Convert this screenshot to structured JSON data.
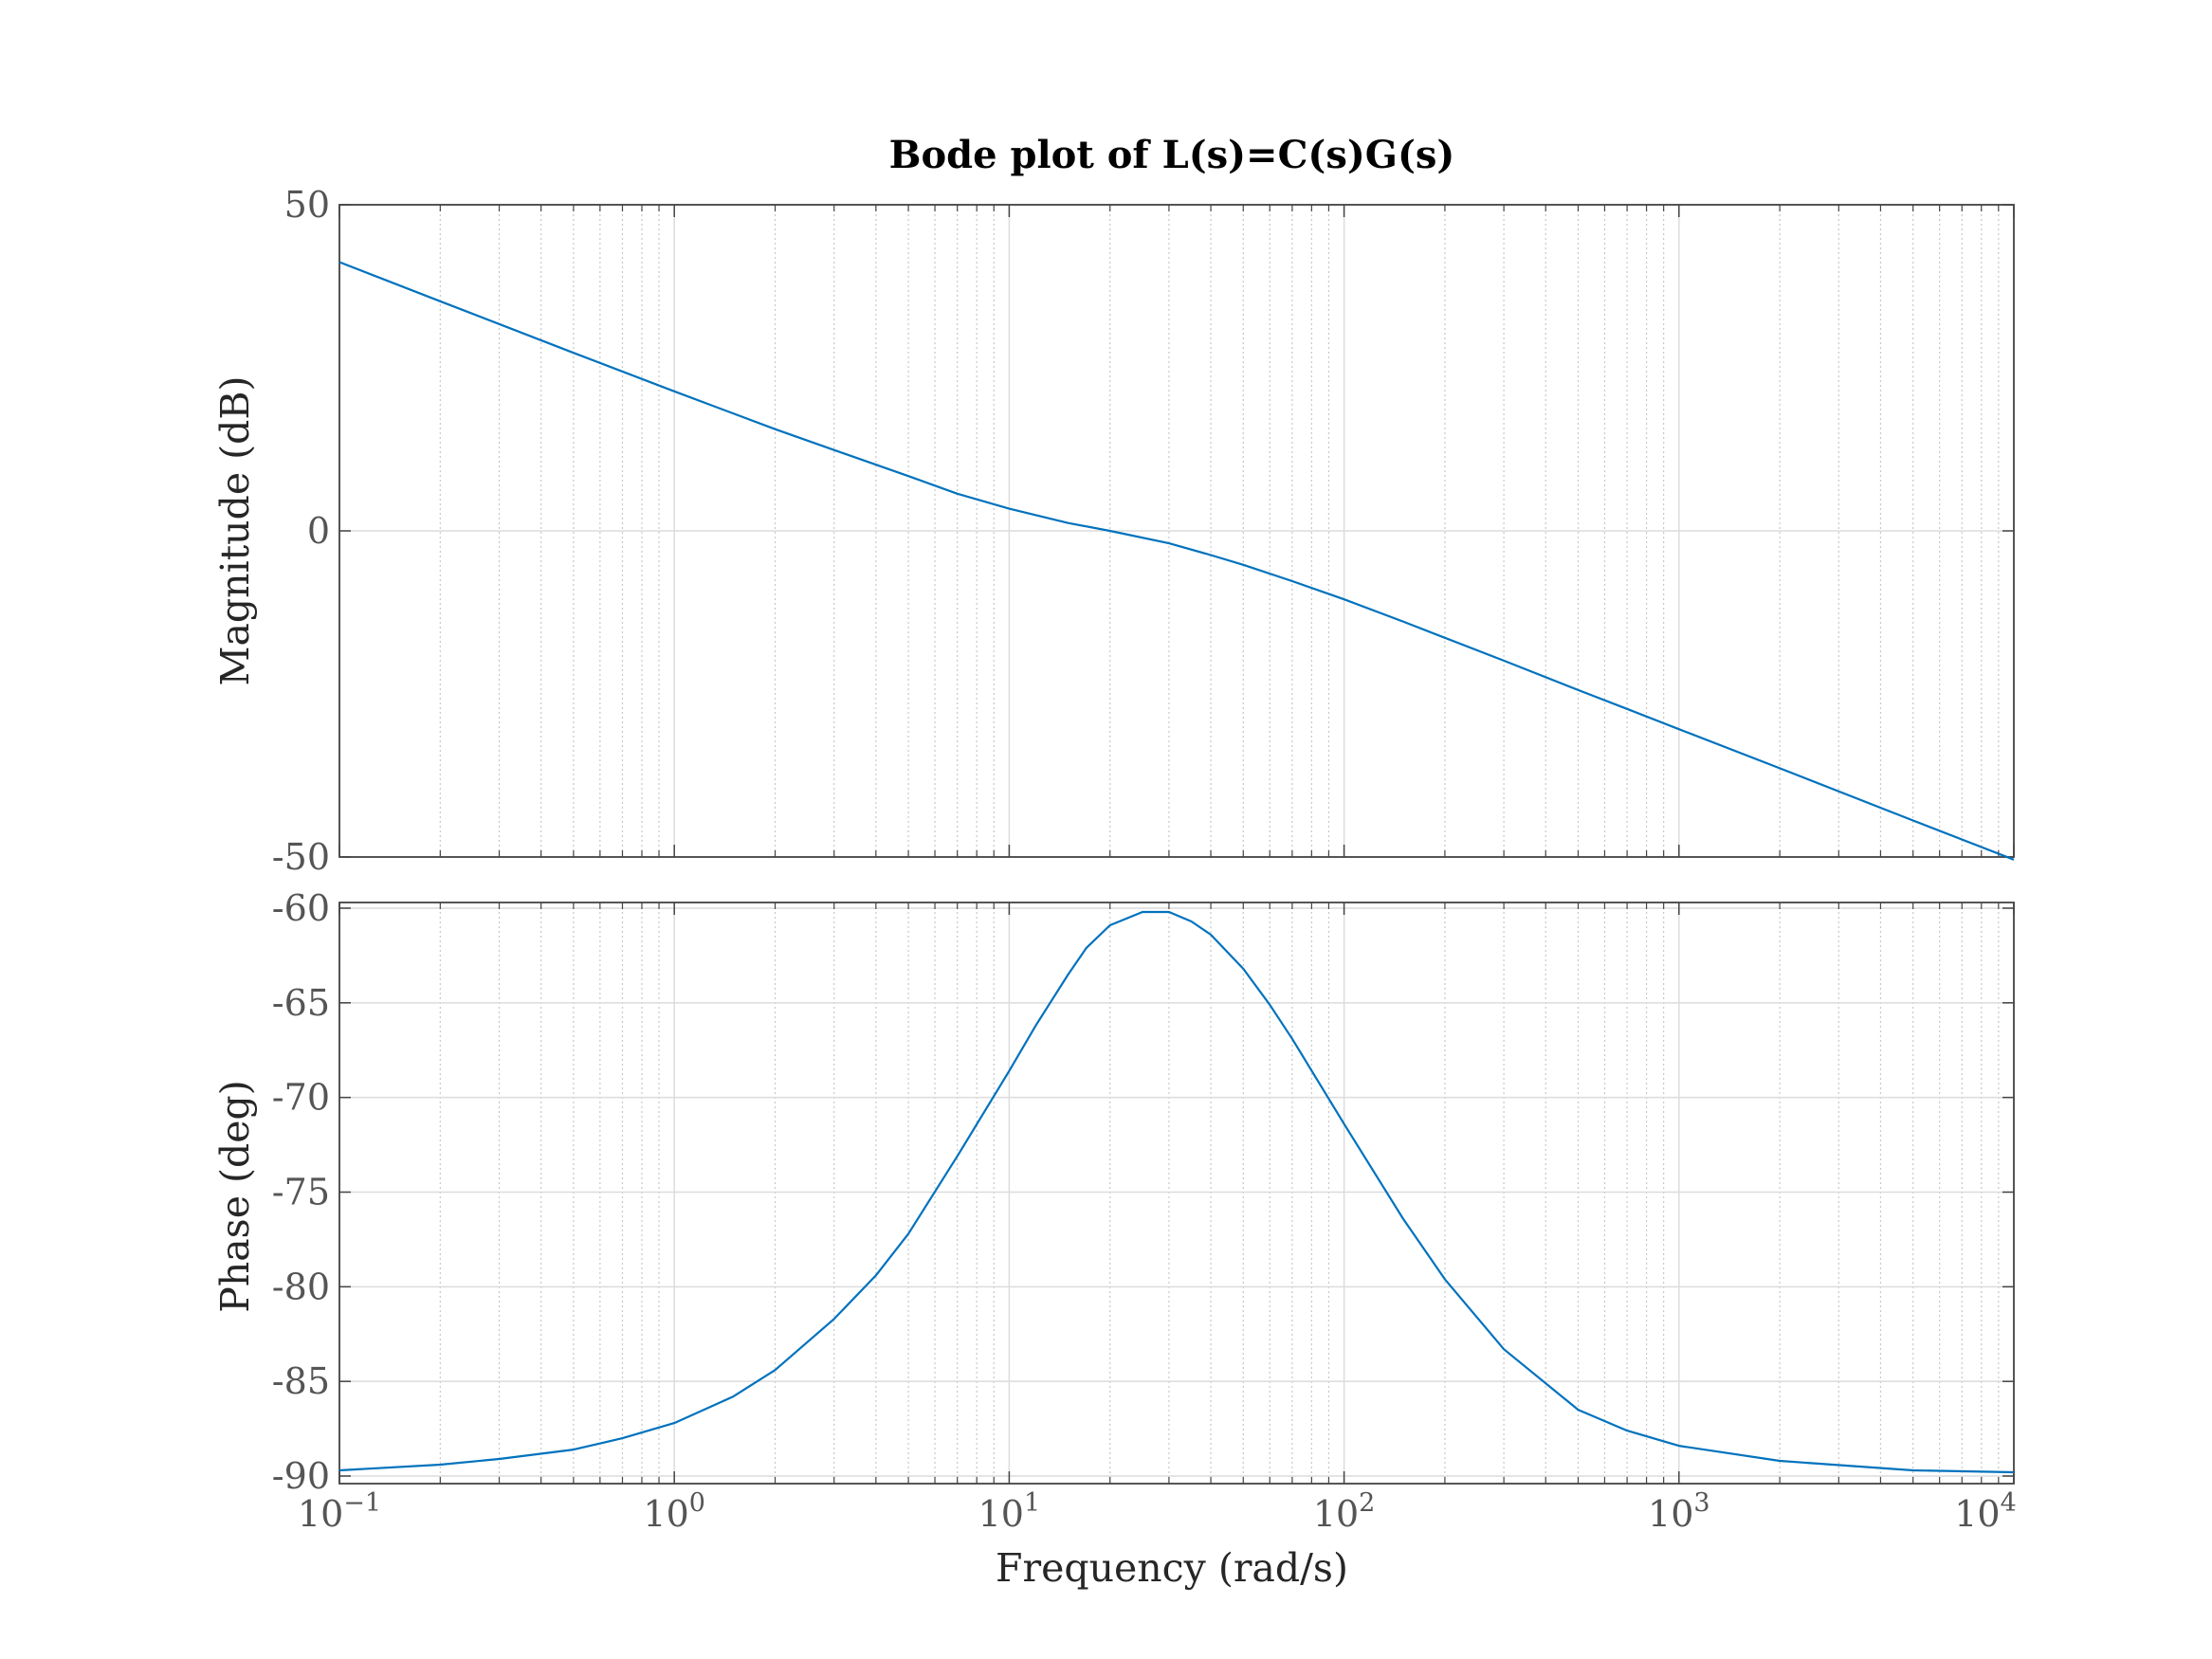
{
  "chart_data": {
    "type": "line",
    "title": "Bode plot of L(s)=C(s)G(s)",
    "xscale": "log",
    "xlim": [
      0.1,
      10000
    ],
    "xlabel": "Frequency  (rad/s)",
    "x_ticks": [
      {
        "base": "10",
        "exp": "−1",
        "value": 0.1
      },
      {
        "base": "10",
        "exp": "0",
        "value": 1
      },
      {
        "base": "10",
        "exp": "1",
        "value": 10
      },
      {
        "base": "10",
        "exp": "2",
        "value": 100
      },
      {
        "base": "10",
        "exp": "3",
        "value": 1000
      },
      {
        "base": "10",
        "exp": "4",
        "value": 10000
      }
    ],
    "grid": true,
    "line_color": "#0072BD",
    "panels": [
      {
        "name": "magnitude",
        "ylabel": "Magnitude (dB)",
        "ylim": [
          -50,
          50
        ],
        "y_ticks": [
          {
            "label": "50",
            "value": 50
          },
          {
            "label": "0",
            "value": 0
          },
          {
            "label": "-50",
            "value": -50
          }
        ],
        "series": [
          {
            "points": [
              [
                0.1,
                41.2
              ],
              [
                0.2,
                35.2
              ],
              [
                0.5,
                27.3
              ],
              [
                1,
                21.4
              ],
              [
                2,
                15.6
              ],
              [
                3,
                12.4
              ],
              [
                5,
                8.4
              ],
              [
                7,
                5.7
              ],
              [
                10,
                3.4
              ],
              [
                15,
                1.2
              ],
              [
                20,
                0.0
              ],
              [
                30,
                -1.9
              ],
              [
                40,
                -3.7
              ],
              [
                50,
                -5.2
              ],
              [
                70,
                -7.7
              ],
              [
                100,
                -10.5
              ],
              [
                150,
                -13.9
              ],
              [
                200,
                -16.4
              ],
              [
                300,
                -19.9
              ],
              [
                500,
                -24.4
              ],
              [
                700,
                -27.3
              ],
              [
                1000,
                -30.4
              ],
              [
                2000,
                -36.4
              ],
              [
                5000,
                -44.4
              ],
              [
                10000,
                -50.4
              ]
            ]
          }
        ]
      },
      {
        "name": "phase",
        "ylabel": "Phase (deg)",
        "ylim": [
          -90.4,
          -59.7
        ],
        "y_ticks": [
          {
            "label": "-60",
            "value": -60
          },
          {
            "label": "-65",
            "value": -65
          },
          {
            "label": "-70",
            "value": -70
          },
          {
            "label": "-75",
            "value": -75
          },
          {
            "label": "-80",
            "value": -80
          },
          {
            "label": "-85",
            "value": -85
          },
          {
            "label": "-90",
            "value": -90
          }
        ],
        "series": [
          {
            "points": [
              [
                0.1,
                -89.7
              ],
              [
                0.2,
                -89.4
              ],
              [
                0.3,
                -89.1
              ],
              [
                0.5,
                -88.6
              ],
              [
                0.7,
                -88.0
              ],
              [
                1,
                -87.2
              ],
              [
                1.5,
                -85.8
              ],
              [
                2,
                -84.4
              ],
              [
                3,
                -81.7
              ],
              [
                4,
                -79.4
              ],
              [
                5,
                -77.2
              ],
              [
                7,
                -73.1
              ],
              [
                10,
                -68.6
              ],
              [
                12,
                -66.2
              ],
              [
                15,
                -63.5
              ],
              [
                17,
                -62.1
              ],
              [
                20,
                -60.9
              ],
              [
                25,
                -60.2
              ],
              [
                30,
                -60.2
              ],
              [
                35,
                -60.7
              ],
              [
                40,
                -61.4
              ],
              [
                50,
                -63.2
              ],
              [
                60,
                -65.1
              ],
              [
                70,
                -66.9
              ],
              [
                100,
                -71.4
              ],
              [
                150,
                -76.4
              ],
              [
                200,
                -79.6
              ],
              [
                300,
                -83.3
              ],
              [
                500,
                -86.5
              ],
              [
                700,
                -87.6
              ],
              [
                1000,
                -88.4
              ],
              [
                2000,
                -89.2
              ],
              [
                5000,
                -89.7
              ],
              [
                10000,
                -89.8
              ]
            ]
          }
        ]
      }
    ]
  }
}
